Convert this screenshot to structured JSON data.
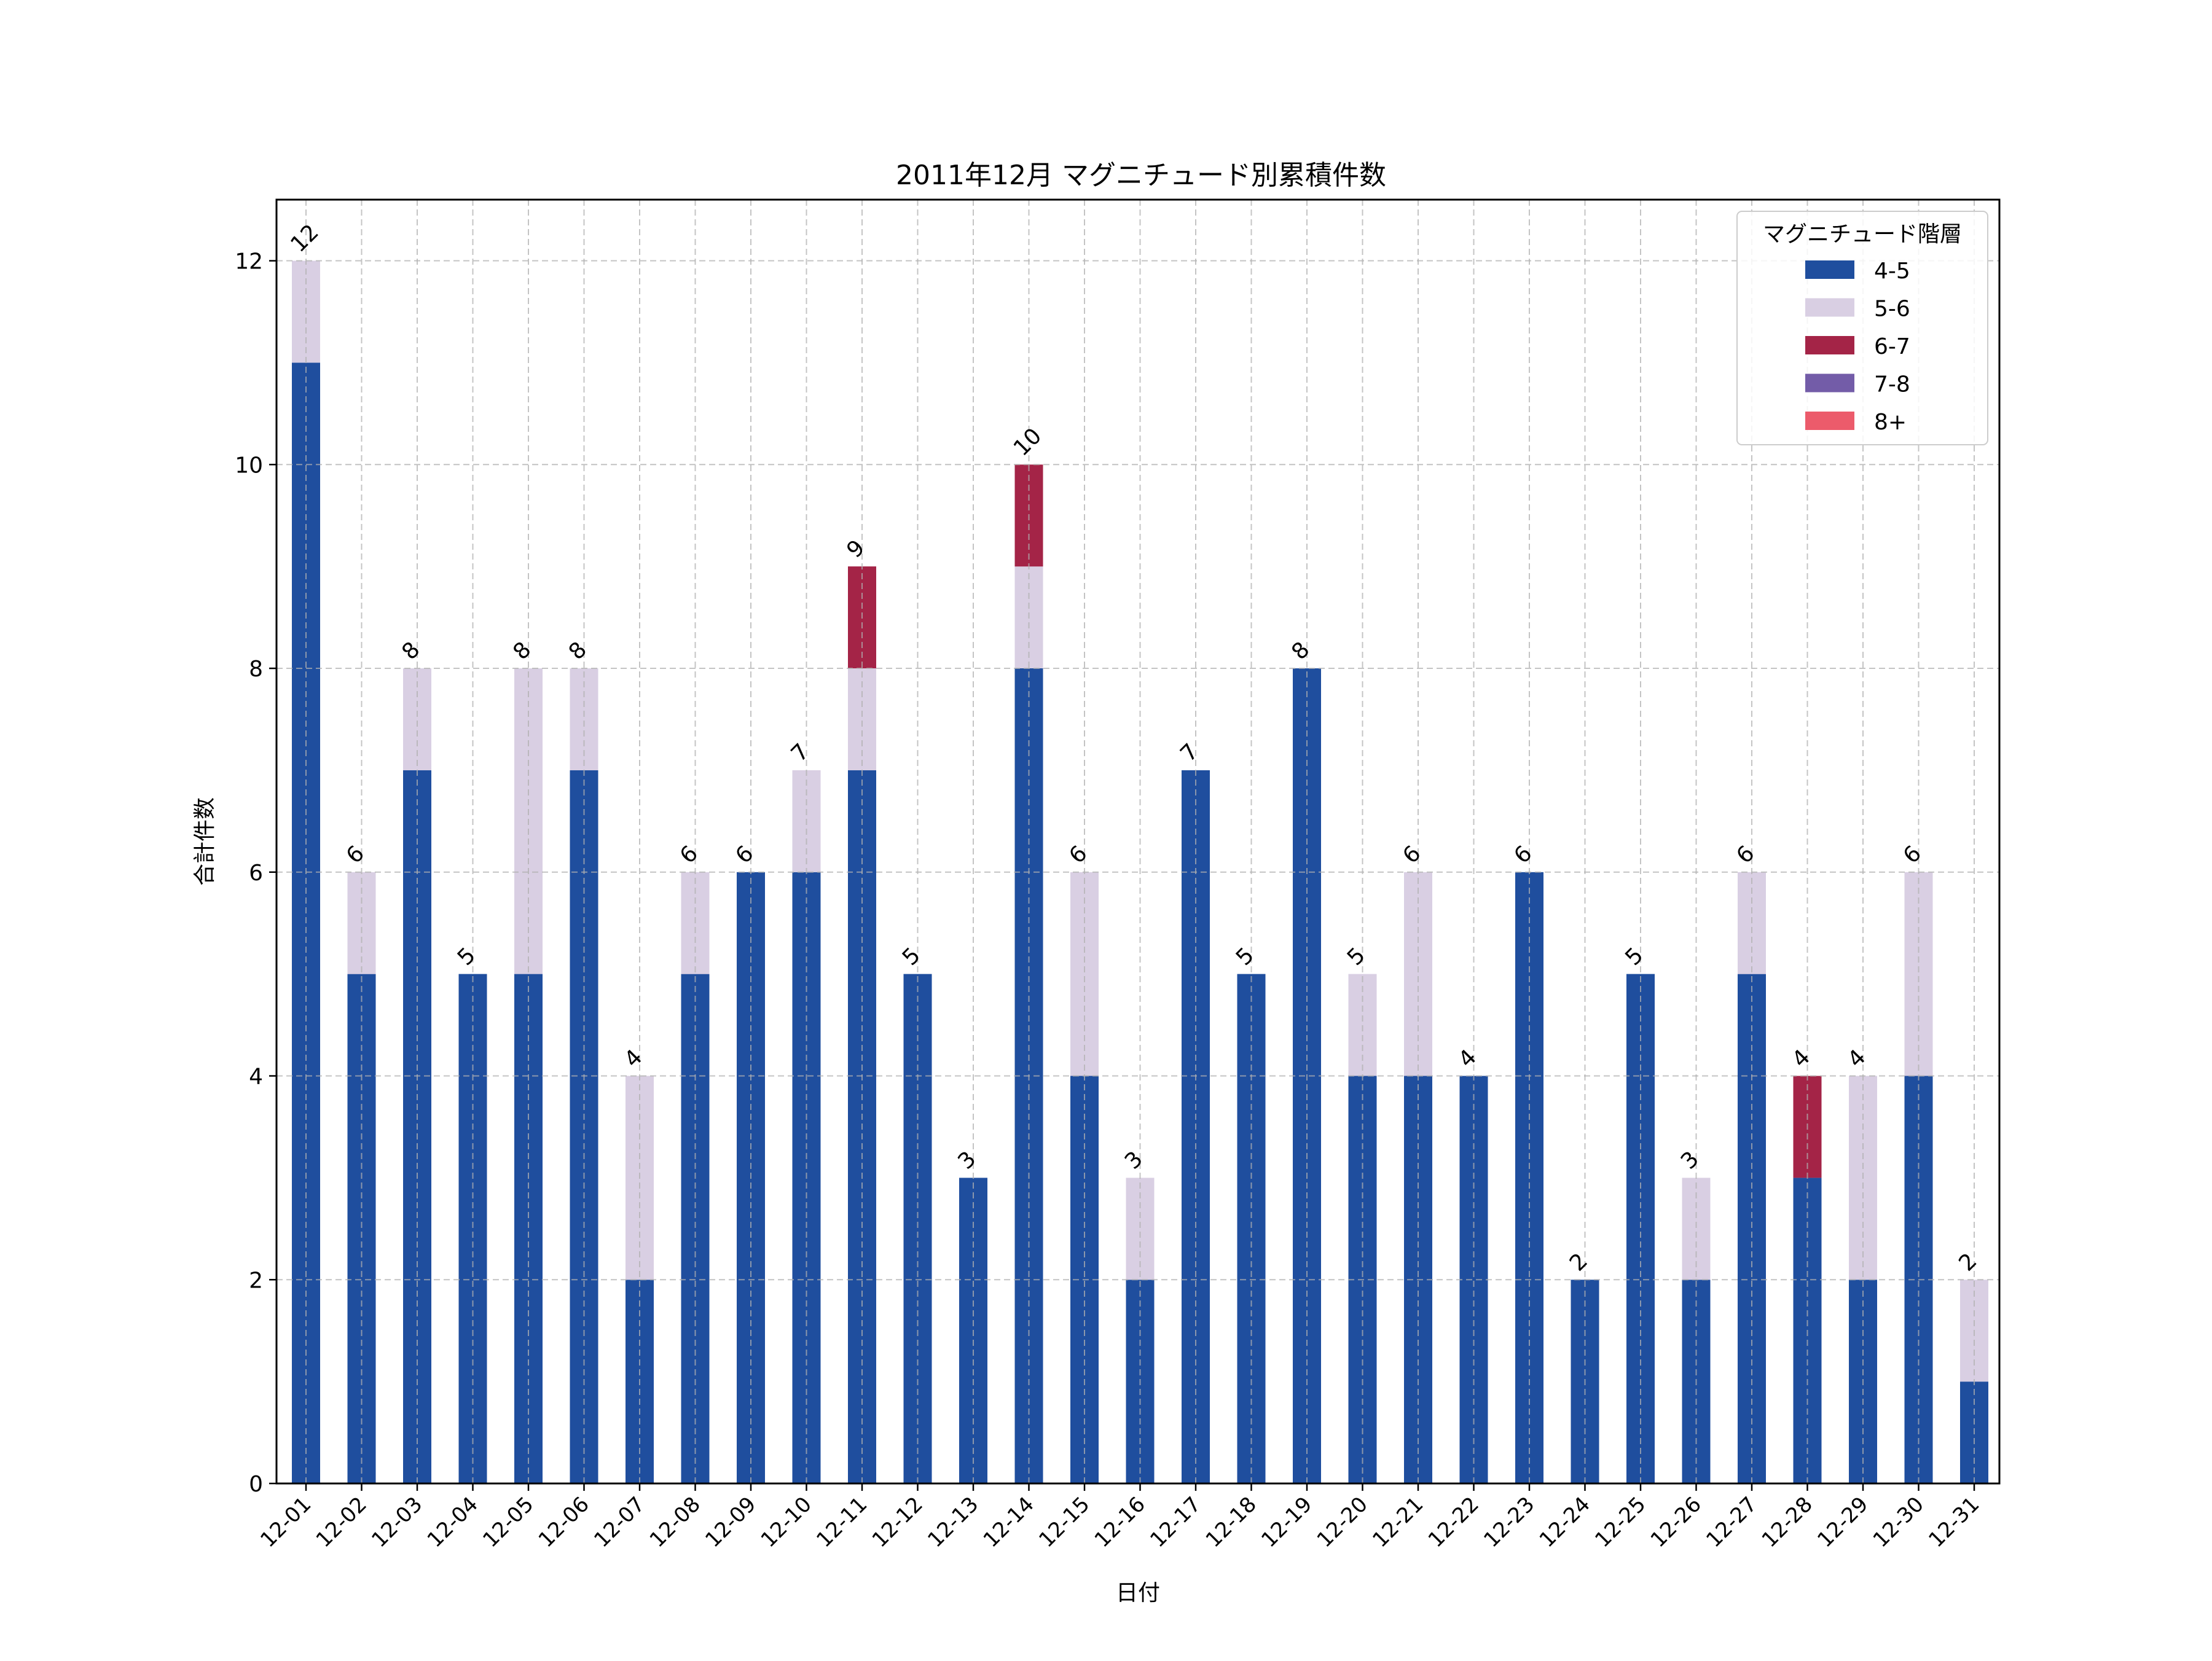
{
  "chart_data": {
    "type": "bar",
    "stacked": true,
    "title": "2011年12月 マグニチュード別累積件数",
    "xlabel": "日付",
    "ylabel": "合計件数",
    "ylim": [
      0,
      12.6
    ],
    "yticks": [
      0,
      2,
      4,
      6,
      8,
      10,
      12
    ],
    "grid": true,
    "legend": {
      "title": "マグニチュード階層",
      "placement": "top-right"
    },
    "categories": [
      "12-01",
      "12-02",
      "12-03",
      "12-04",
      "12-05",
      "12-06",
      "12-07",
      "12-08",
      "12-09",
      "12-10",
      "12-11",
      "12-12",
      "12-13",
      "12-14",
      "12-15",
      "12-16",
      "12-17",
      "12-18",
      "12-19",
      "12-20",
      "12-21",
      "12-22",
      "12-23",
      "12-24",
      "12-25",
      "12-26",
      "12-27",
      "12-28",
      "12-29",
      "12-30",
      "12-31"
    ],
    "series": [
      {
        "name": "4-5",
        "color": "#1f4e9e",
        "values": [
          11,
          5,
          7,
          5,
          5,
          7,
          2,
          5,
          6,
          6,
          7,
          5,
          3,
          8,
          4,
          2,
          7,
          5,
          8,
          4,
          4,
          4,
          6,
          2,
          5,
          2,
          5,
          3,
          2,
          4,
          1
        ]
      },
      {
        "name": "5-6",
        "color": "#d9cfe3",
        "values": [
          1,
          1,
          1,
          0,
          3,
          1,
          2,
          1,
          0,
          1,
          1,
          0,
          0,
          1,
          2,
          1,
          0,
          0,
          0,
          1,
          2,
          0,
          0,
          0,
          0,
          1,
          1,
          0,
          2,
          2,
          1
        ]
      },
      {
        "name": "6-7",
        "color": "#a42447",
        "values": [
          0,
          0,
          0,
          0,
          0,
          0,
          0,
          0,
          0,
          0,
          1,
          0,
          0,
          1,
          0,
          0,
          0,
          0,
          0,
          0,
          0,
          0,
          0,
          0,
          0,
          0,
          0,
          1,
          0,
          0,
          0
        ]
      },
      {
        "name": "7-8",
        "color": "#735ca8",
        "values": [
          0,
          0,
          0,
          0,
          0,
          0,
          0,
          0,
          0,
          0,
          0,
          0,
          0,
          0,
          0,
          0,
          0,
          0,
          0,
          0,
          0,
          0,
          0,
          0,
          0,
          0,
          0,
          0,
          0,
          0,
          0
        ]
      },
      {
        "name": "8+",
        "color": "#ec5b6b",
        "values": [
          0,
          0,
          0,
          0,
          0,
          0,
          0,
          0,
          0,
          0,
          0,
          0,
          0,
          0,
          0,
          0,
          0,
          0,
          0,
          0,
          0,
          0,
          0,
          0,
          0,
          0,
          0,
          0,
          0,
          0,
          0
        ]
      }
    ],
    "totals": [
      12,
      6,
      8,
      5,
      8,
      8,
      4,
      6,
      6,
      7,
      9,
      5,
      3,
      10,
      6,
      3,
      7,
      5,
      8,
      5,
      6,
      4,
      6,
      2,
      5,
      3,
      6,
      4,
      4,
      6,
      2
    ]
  }
}
